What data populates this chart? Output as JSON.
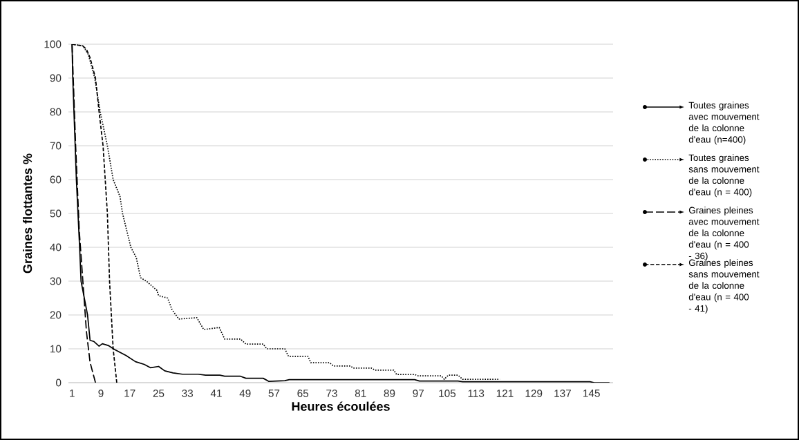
{
  "chart_data": {
    "type": "line",
    "xlabel": "Heures écoulées",
    "ylabel": "Graines flottantes %",
    "xlim": [
      0,
      151
    ],
    "ylim": [
      0,
      100
    ],
    "xticks": [
      1,
      9,
      17,
      25,
      33,
      41,
      49,
      57,
      65,
      73,
      81,
      89,
      97,
      105,
      113,
      121,
      129,
      137,
      145
    ],
    "yticks": [
      0,
      10,
      20,
      30,
      40,
      50,
      60,
      70,
      80,
      90,
      100
    ],
    "grid": "y",
    "legend": "right",
    "series": [
      {
        "name": "Toutes graines avec mouvement de la colonne d'eau (n=400)",
        "color": "#000000",
        "line_style": "solid",
        "x": [
          1,
          1.2,
          2.2,
          3.1,
          3.5,
          5.3,
          6,
          7,
          8.5,
          9.4,
          11,
          12.8,
          16,
          18.6,
          21,
          22.8,
          25,
          26.7,
          29,
          31.6,
          36,
          38,
          42,
          43.3,
          47.7,
          49.2,
          54,
          55.5,
          60,
          61.2,
          96,
          97.3,
          108,
          109.3,
          144.6,
          145.8,
          150
        ],
        "values": [
          100,
          90,
          60,
          40,
          30,
          20,
          12.5,
          12.2,
          10.8,
          11.5,
          11,
          9.8,
          8,
          6.2,
          5.4,
          4.4,
          4.8,
          3.5,
          2.9,
          2.5,
          2.5,
          2.2,
          2.2,
          1.9,
          1.9,
          1.3,
          1.3,
          0.4,
          0.6,
          0.9,
          0.9,
          0.5,
          0.5,
          0.3,
          0.3,
          0,
          0
        ]
      },
      {
        "name": "Toutes graines sans mouvement de la colonne d'eau (n = 400)",
        "color": "#000000",
        "line_style": "dotted",
        "x": [
          1,
          4,
          5.5,
          7.3,
          8.8,
          10.8,
          12.4,
          14.3,
          15,
          17.3,
          18.8,
          20,
          21.6,
          24.5,
          25,
          27.5,
          28.7,
          30.6,
          35.6,
          37.5,
          41.8,
          43.3,
          47.7,
          49.2,
          54,
          55,
          60,
          61,
          66.4,
          67.2,
          72.4,
          73.5,
          78.2,
          79,
          84,
          85,
          90.2,
          91,
          96,
          97,
          103.4,
          104.2,
          105.3,
          108,
          109.3,
          119.6
        ],
        "values": [
          100,
          99.5,
          97,
          90,
          80,
          70,
          60,
          55,
          50,
          40,
          37,
          31,
          30,
          27.3,
          25.7,
          25,
          21.6,
          18.8,
          19.2,
          15.7,
          16.3,
          12.9,
          12.9,
          11.4,
          11.4,
          10,
          10,
          7.8,
          7.8,
          5.9,
          5.9,
          4.9,
          4.9,
          4.3,
          4.3,
          3.7,
          3.7,
          2.4,
          2.4,
          2.0,
          2.0,
          1.0,
          2.2,
          2.2,
          1.0,
          1.0
        ]
      },
      {
        "name": "Graines pleines avec mouvement de la colonne d'eau (n = 400 - 36)",
        "color": "#000000",
        "line_style": "dashed",
        "x": [
          1,
          2,
          3,
          4,
          5,
          6,
          7.5
        ],
        "values": [
          100,
          70,
          45,
          30,
          15,
          6,
          0
        ]
      },
      {
        "name": "Graines pleines sans mouvement de la colonne d'eau (n = 400 - 41)",
        "color": "#000000",
        "line_style": "dashed",
        "x": [
          1,
          4,
          5,
          6,
          7.5,
          8.5,
          9.6,
          10.2,
          10.8,
          11.4,
          12.4,
          13.4
        ],
        "values": [
          100,
          99.5,
          98.5,
          96,
          90,
          80,
          70,
          60,
          50,
          30,
          10,
          0
        ]
      }
    ]
  }
}
